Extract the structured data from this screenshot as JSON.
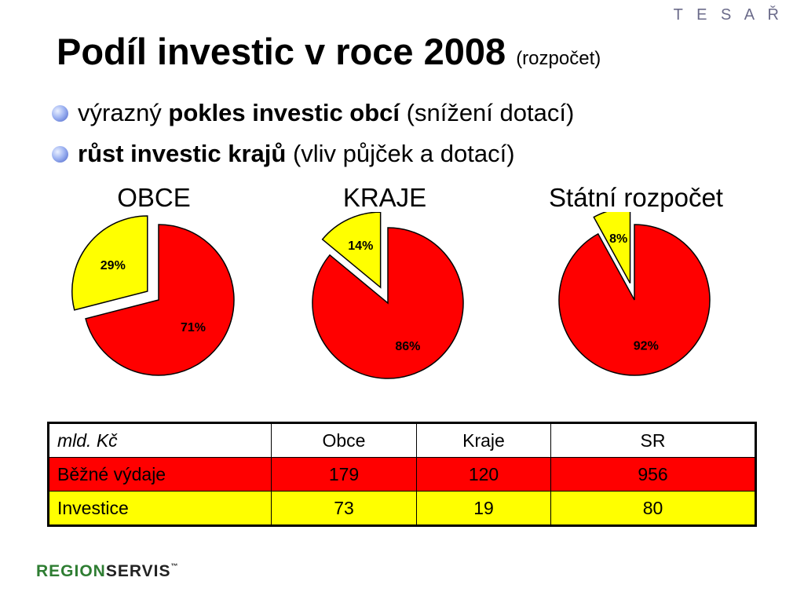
{
  "header": {
    "author": "T E S A Ř",
    "title": "Podíl investic v roce 2008",
    "title_sub": "(rozpočet)"
  },
  "bullets": [
    {
      "pre": "výrazný ",
      "bold": "pokles investic obcí",
      "post": " (snížení dotací)"
    },
    {
      "pre": "",
      "bold": "růst investic krajů",
      "post": " (vliv půjček a dotací)"
    }
  ],
  "colors": {
    "red": "#ff0000",
    "yellow": "#ffff00"
  },
  "chart_data": [
    {
      "type": "pie",
      "title": "OBCE",
      "slices": [
        {
          "value": 29,
          "label": "29%",
          "color": "#ffff00",
          "exploded": true
        },
        {
          "value": 71,
          "label": "71%",
          "color": "#ff0000",
          "exploded": false
        }
      ]
    },
    {
      "type": "pie",
      "title": "KRAJE",
      "slices": [
        {
          "value": 14,
          "label": "14%",
          "color": "#ffff00",
          "exploded": true
        },
        {
          "value": 86,
          "label": "86%",
          "color": "#ff0000",
          "exploded": false
        }
      ]
    },
    {
      "type": "pie",
      "title": "Státní rozpočet",
      "slices": [
        {
          "value": 8,
          "label": "8%",
          "color": "#ffff00",
          "exploded": true
        },
        {
          "value": 92,
          "label": "92%",
          "color": "#ff0000",
          "exploded": false
        }
      ]
    }
  ],
  "table": {
    "header": [
      "mld. Kč",
      "Obce",
      "Kraje",
      "SR"
    ],
    "rows": [
      [
        "Běžné výdaje",
        "179",
        "120",
        "956"
      ],
      [
        "Investice",
        "73",
        "19",
        "80"
      ]
    ]
  },
  "logo": {
    "part1": "REGION",
    "part2": "SERVIS",
    "tm": "™"
  }
}
